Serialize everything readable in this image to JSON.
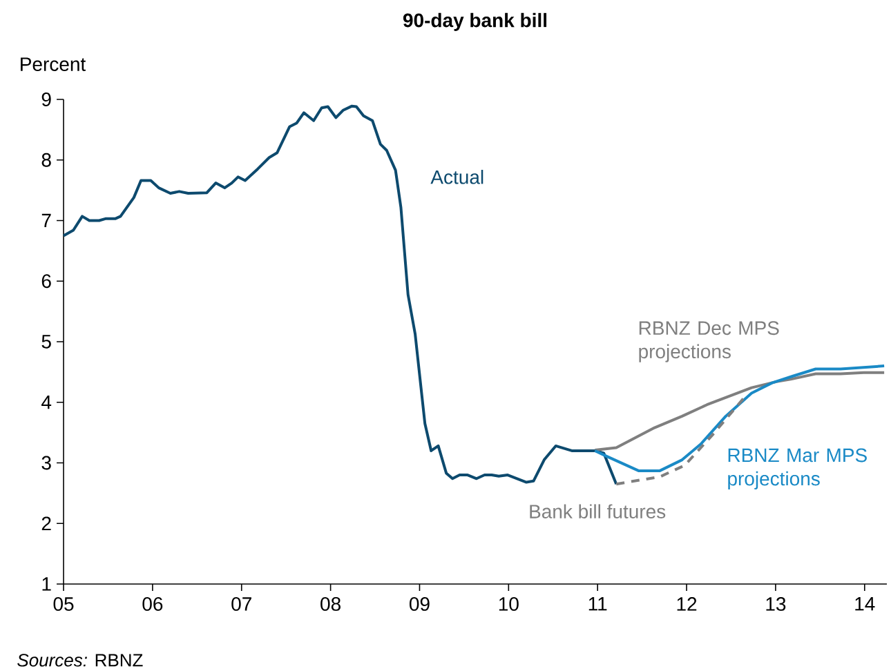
{
  "chart_data": {
    "type": "line",
    "title": "90-day bank bill",
    "ylabel": "Percent",
    "xlim": [
      2005,
      2014.25
    ],
    "ylim": [
      1,
      9
    ],
    "xticks": [
      {
        "value": 2005,
        "label": "05"
      },
      {
        "value": 2006,
        "label": "06"
      },
      {
        "value": 2007,
        "label": "07"
      },
      {
        "value": 2008,
        "label": "08"
      },
      {
        "value": 2009,
        "label": "09"
      },
      {
        "value": 2010,
        "label": "10"
      },
      {
        "value": 2011,
        "label": "11"
      },
      {
        "value": 2012,
        "label": "12"
      },
      {
        "value": 2013,
        "label": "13"
      },
      {
        "value": 2014,
        "label": "14"
      }
    ],
    "yticks": [
      1,
      2,
      3,
      4,
      5,
      6,
      7,
      8,
      9
    ],
    "grid": false,
    "legend": false,
    "series": [
      {
        "name": "Actual",
        "color": "#0d4a6e",
        "line_style": "solid",
        "x": [
          2005.0,
          2005.11,
          2005.21,
          2005.29,
          2005.4,
          2005.47,
          2005.58,
          2005.64,
          2005.79,
          2005.87,
          2005.98,
          2006.07,
          2006.2,
          2006.3,
          2006.4,
          2006.61,
          2006.71,
          2006.81,
          2006.89,
          2006.96,
          2007.04,
          2007.18,
          2007.31,
          2007.4,
          2007.54,
          2007.62,
          2007.7,
          2007.81,
          2007.9,
          2007.97,
          2008.06,
          2008.14,
          2008.24,
          2008.29,
          2008.37,
          2008.47,
          2008.56,
          2008.63,
          2008.73,
          2008.79,
          2008.87,
          2008.95,
          2009.06,
          2009.13,
          2009.21,
          2009.3,
          2009.37,
          2009.45,
          2009.54,
          2009.64,
          2009.73,
          2009.81,
          2009.89,
          2009.99,
          2010.2,
          2010.28,
          2010.4,
          2010.53,
          2010.71,
          2010.97,
          2011.07,
          2011.21
        ],
        "values": [
          6.75,
          6.84,
          7.07,
          7.0,
          7.0,
          7.03,
          7.03,
          7.07,
          7.38,
          7.66,
          7.66,
          7.54,
          7.45,
          7.48,
          7.45,
          7.46,
          7.62,
          7.54,
          7.62,
          7.72,
          7.66,
          7.85,
          8.04,
          8.12,
          8.55,
          8.61,
          8.78,
          8.65,
          8.86,
          8.88,
          8.7,
          8.82,
          8.89,
          8.88,
          8.73,
          8.65,
          8.26,
          8.16,
          7.83,
          7.22,
          5.78,
          5.13,
          3.65,
          3.2,
          3.28,
          2.83,
          2.74,
          2.8,
          2.8,
          2.74,
          2.8,
          2.8,
          2.78,
          2.8,
          2.68,
          2.7,
          3.05,
          3.28,
          3.2,
          3.2,
          3.16,
          2.65
        ]
      },
      {
        "name": "RBNZ Dec MPS projections",
        "color": "#7f7f7f",
        "line_style": "solid",
        "x": [
          2010.97,
          2011.21,
          2011.64,
          2011.95,
          2012.23,
          2012.73,
          2013.01,
          2013.17,
          2013.45,
          2013.73,
          2013.99,
          2014.22
        ],
        "values": [
          3.21,
          3.25,
          3.58,
          3.77,
          3.96,
          4.24,
          4.34,
          4.38,
          4.47,
          4.47,
          4.49,
          4.49
        ]
      },
      {
        "name": "RBNZ Mar MPS projections",
        "color": "#1a8ac6",
        "line_style": "solid",
        "x": [
          2010.97,
          2011.1,
          2011.46,
          2011.7,
          2011.95,
          2012.16,
          2012.44,
          2012.73,
          2012.96,
          2013.19,
          2013.45,
          2013.73,
          2014.22
        ],
        "values": [
          3.2,
          3.11,
          2.87,
          2.87,
          3.05,
          3.31,
          3.77,
          4.15,
          4.32,
          4.43,
          4.55,
          4.55,
          4.6
        ]
      },
      {
        "name": "Bank bill futures",
        "color": "#7f7f7f",
        "line_style": "dashed",
        "x": [
          2011.21,
          2011.7,
          2011.98,
          2012.29,
          2012.66
        ],
        "values": [
          2.65,
          2.77,
          2.96,
          3.46,
          4.1
        ]
      }
    ],
    "annotations": [
      "*Sources:* RBNZ"
    ]
  }
}
